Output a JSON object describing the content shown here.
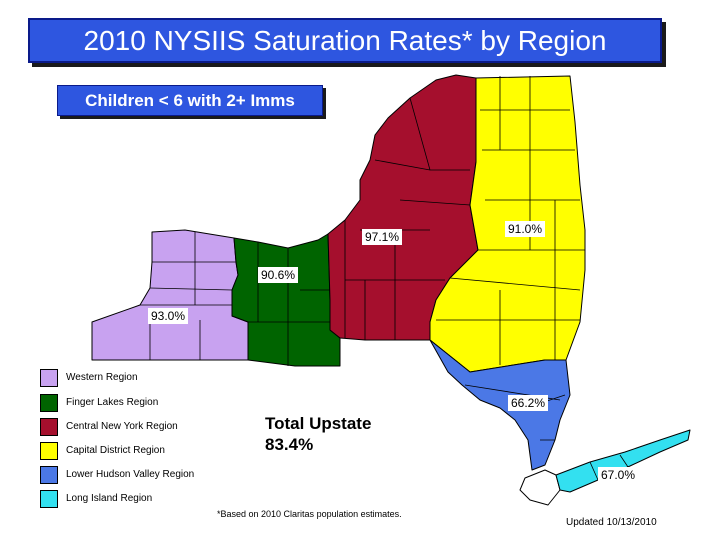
{
  "title": "2010 NYSIIS Saturation Rates* by Region",
  "subtitle": "Children < 6 with 2+ Imms",
  "regions": [
    {
      "name": "Western Region",
      "rate": "93.0%",
      "color": "#c8a2f0"
    },
    {
      "name": "Finger Lakes Region",
      "rate": "90.6%",
      "color": "#006400"
    },
    {
      "name": "Central New York Region",
      "rate": "97.1%",
      "color": "#a50f2d"
    },
    {
      "name": "Capital District Region",
      "rate": "91.0%",
      "color": "#ffff00"
    },
    {
      "name": "Lower Hudson Valley Region",
      "rate": "66.2%",
      "color": "#4b78e6"
    },
    {
      "name": "Long Island Region",
      "rate": "67.0%",
      "color": "#33e0f0"
    }
  ],
  "total": {
    "label": "Total Upstate",
    "value": "83.4%"
  },
  "footnote": "*Based on 2010 Claritas population estimates.",
  "updated": "Updated 10/13/2010"
}
